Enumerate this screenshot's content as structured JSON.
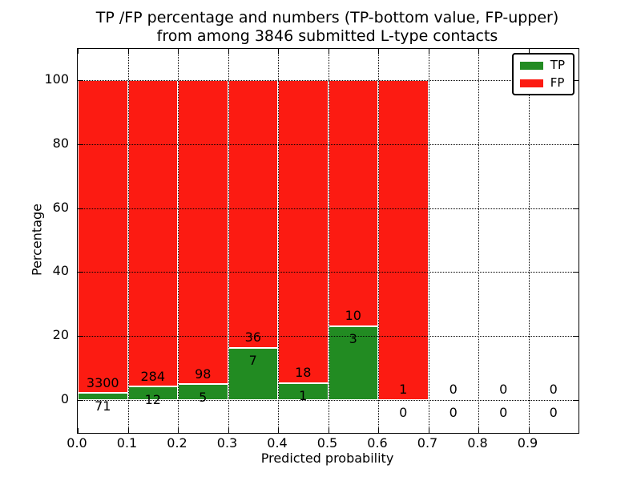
{
  "chart_data": {
    "type": "bar",
    "stacked": true,
    "title_line1": "TP /FP percentage and numbers (TP-bottom value, FP-upper)",
    "title_line2": "from among 3846 submitted L-type contacts",
    "xlabel": "Predicted probability",
    "ylabel": "Percentage",
    "x_tick_labels": [
      "0.0",
      "0.1",
      "0.2",
      "0.3",
      "0.4",
      "0.5",
      "0.6",
      "0.7",
      "0.8",
      "0.9"
    ],
    "y_tick_values": [
      0,
      20,
      40,
      60,
      80,
      100
    ],
    "xlim": [
      0.0,
      1.0
    ],
    "ylim": [
      -10.4,
      109.9
    ],
    "bin_width": 0.1,
    "grid": true,
    "total_submitted": 3846,
    "bar_edge_color": "#ffffff",
    "legend_position": "upper right",
    "legend": [
      {
        "label": "TP",
        "color": "#228b22"
      },
      {
        "label": "FP",
        "color": "#fc1b12"
      }
    ],
    "bins": [
      {
        "x_start": 0.0,
        "x_end": 0.1,
        "tp_count": 71,
        "fp_count": 3300,
        "tp_pct": 2.11,
        "fp_pct": 97.89,
        "has_bar": true
      },
      {
        "x_start": 0.1,
        "x_end": 0.2,
        "tp_count": 12,
        "fp_count": 284,
        "tp_pct": 4.05,
        "fp_pct": 95.95,
        "has_bar": true
      },
      {
        "x_start": 0.2,
        "x_end": 0.3,
        "tp_count": 5,
        "fp_count": 98,
        "tp_pct": 4.85,
        "fp_pct": 95.15,
        "has_bar": true
      },
      {
        "x_start": 0.3,
        "x_end": 0.4,
        "tp_count": 7,
        "fp_count": 36,
        "tp_pct": 16.28,
        "fp_pct": 83.72,
        "has_bar": true
      },
      {
        "x_start": 0.4,
        "x_end": 0.5,
        "tp_count": 1,
        "fp_count": 18,
        "tp_pct": 5.26,
        "fp_pct": 94.74,
        "has_bar": true
      },
      {
        "x_start": 0.5,
        "x_end": 0.6,
        "tp_count": 3,
        "fp_count": 10,
        "tp_pct": 23.08,
        "fp_pct": 76.92,
        "has_bar": true
      },
      {
        "x_start": 0.6,
        "x_end": 0.7,
        "tp_count": 0,
        "fp_count": 1,
        "tp_pct": 0.0,
        "fp_pct": 100.0,
        "has_bar": true
      },
      {
        "x_start": 0.7,
        "x_end": 0.8,
        "tp_count": 0,
        "fp_count": 0,
        "tp_pct": 0.0,
        "fp_pct": 0.0,
        "has_bar": false
      },
      {
        "x_start": 0.8,
        "x_end": 0.9,
        "tp_count": 0,
        "fp_count": 0,
        "tp_pct": 0.0,
        "fp_pct": 0.0,
        "has_bar": false
      },
      {
        "x_start": 0.9,
        "x_end": 1.0,
        "tp_count": 0,
        "fp_count": 0,
        "tp_pct": 0.0,
        "fp_pct": 0.0,
        "has_bar": false
      }
    ]
  }
}
